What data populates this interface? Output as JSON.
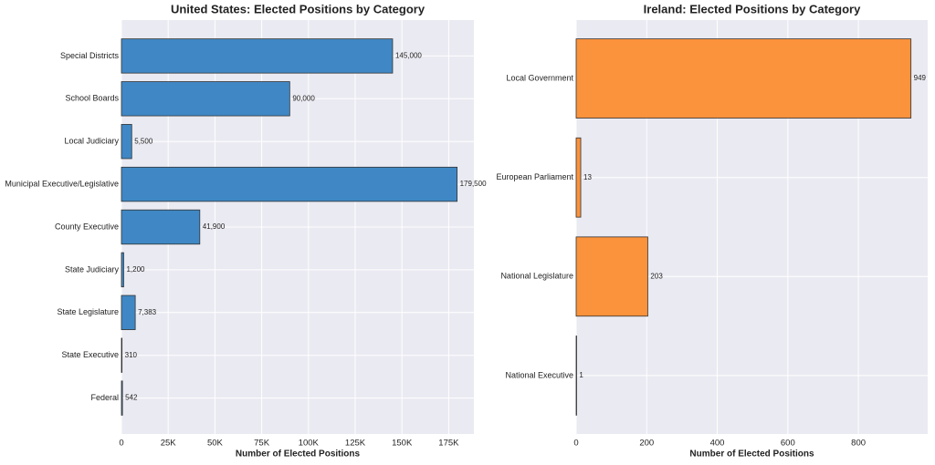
{
  "chart_data": [
    {
      "type": "bar",
      "orientation": "horizontal",
      "title": "United States: Elected Positions by Category",
      "x_label": "Number of Elected Positions",
      "categories": [
        "Special Districts",
        "School Boards",
        "Local Judiciary",
        "Municipal Executive/Legislative",
        "County Executive",
        "State Judiciary",
        "State Legislature",
        "State Executive",
        "Federal"
      ],
      "values": [
        145000,
        90000,
        5500,
        179500,
        41900,
        1200,
        7383,
        310,
        542
      ],
      "value_labels": [
        "145,000",
        "90,000",
        "5,500",
        "179,500",
        "41,900",
        "1,200",
        "7,383",
        "310",
        "542"
      ],
      "color": "#3f88c5",
      "xlim": [
        0,
        188475
      ],
      "xticks": [
        0,
        {
          "value": 25000,
          "label": "25K"
        },
        {
          "value": 50000,
          "label": "50K"
        },
        {
          "value": 75000,
          "label": "75K"
        },
        {
          "value": 100000,
          "label": "100K"
        },
        {
          "value": 125000,
          "label": "125K"
        },
        {
          "value": 150000,
          "label": "150K"
        },
        {
          "value": 175000,
          "label": "175K"
        }
      ],
      "grid": true
    },
    {
      "type": "bar",
      "orientation": "horizontal",
      "title": "Ireland: Elected Positions by Category",
      "x_label": "Number of Elected Positions",
      "categories": [
        "Local Government",
        "European Parliament",
        "National Legislature",
        "National Executive"
      ],
      "values": [
        949,
        13,
        203,
        1
      ],
      "color": "#fb923c",
      "xlim": [
        0,
        996.45
      ],
      "xticks": [
        0,
        200,
        400,
        600,
        800
      ],
      "grid": true
    }
  ]
}
